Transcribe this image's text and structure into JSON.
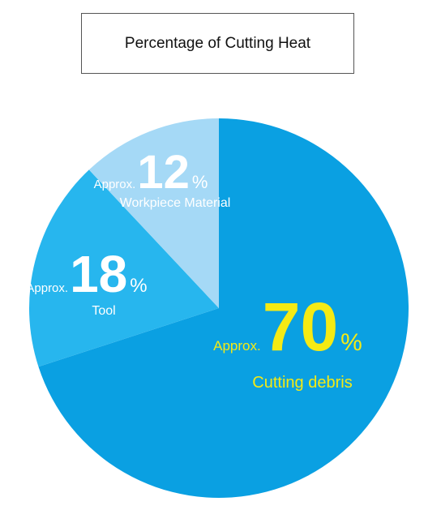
{
  "chart_data": {
    "type": "pie",
    "title": "Percentage of Cutting Heat",
    "slices": [
      {
        "label": "Cutting debris",
        "value": 70,
        "prefix": "Approx.",
        "value_text": "70",
        "unit": "%",
        "color": "#0aa0e2",
        "text_color": "#f5ea14"
      },
      {
        "label": "Tool",
        "value": 18,
        "prefix": "Approx.",
        "value_text": "18",
        "unit": "%",
        "color": "#27b6ee",
        "text_color": "#ffffff"
      },
      {
        "label": "Workpiece Material",
        "value": 12,
        "prefix": "Approx.",
        "value_text": "12",
        "unit": "%",
        "color": "#a5d9f6",
        "text_color": "#ffffff"
      }
    ]
  }
}
